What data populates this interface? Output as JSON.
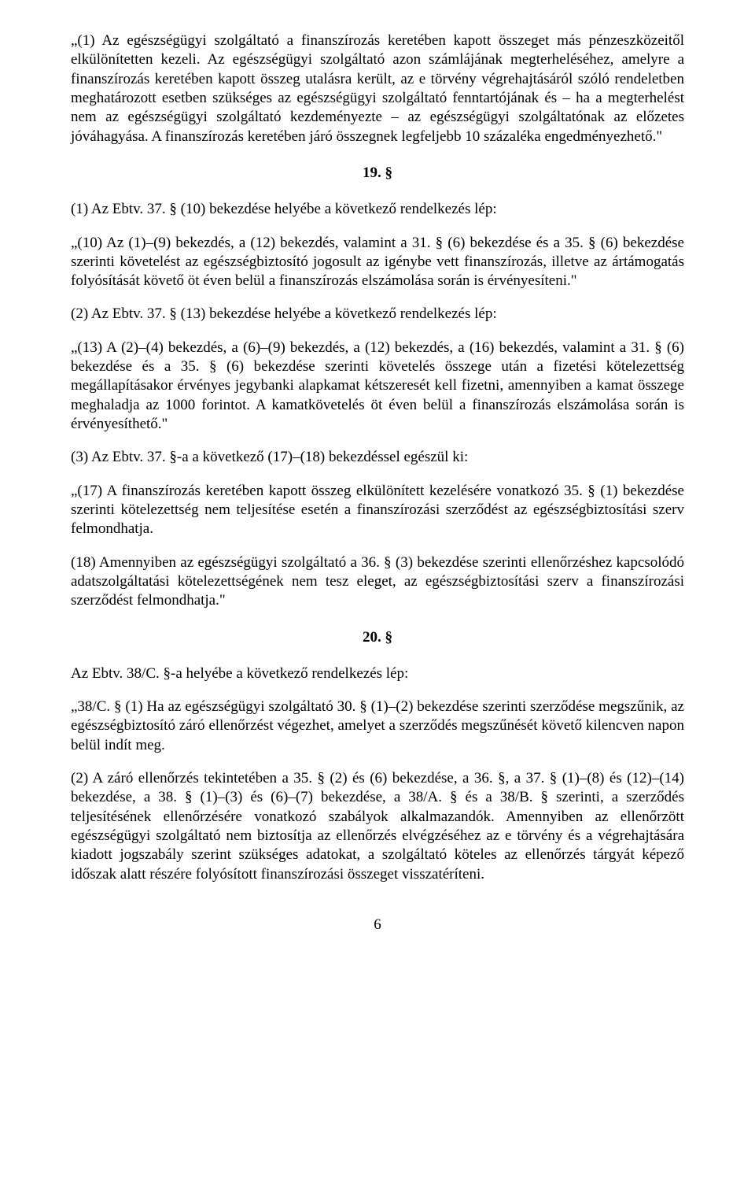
{
  "p1": "„(1) Az egészségügyi szolgáltató a finanszírozás keretében kapott összeget más pénzeszközeitől elkülönítetten kezeli. Az egészségügyi szolgáltató azon számlájának megterheléséhez, amelyre a finanszírozás keretében kapott összeg utalásra került, az e törvény végrehajtásáról szóló rendeletben meghatározott esetben szükséges az egészségügyi szolgáltató fenntartójának és – ha a megterhelést nem az egészségügyi szolgáltató kezdeményezte – az egészségügyi szolgáltatónak az előzetes jóváhagyása. A finanszírozás keretében járó összegnek legfeljebb 10 százaléka engedményezhető.\"",
  "s19": "19. §",
  "p2": "(1) Az Ebtv. 37. § (10) bekezdése helyébe a következő rendelkezés lép:",
  "p3": "„(10) Az (1)–(9) bekezdés, a (12) bekezdés, valamint a 31. § (6) bekezdése és a 35. § (6) bekezdése szerinti követelést az egészségbiztosító jogosult az igénybe vett finanszírozás, illetve az ártámogatás folyósítását követő öt éven belül a finanszírozás elszámolása során is érvényesíteni.\"",
  "p4": "(2) Az Ebtv. 37. § (13) bekezdése helyébe a következő rendelkezés lép:",
  "p5": "„(13) A (2)–(4) bekezdés, a (6)–(9) bekezdés, a (12) bekezdés, a (16) bekezdés, valamint a 31. § (6) bekezdése és a 35. § (6) bekezdése szerinti követelés összege után a fizetési kötelezettség megállapításakor érvényes jegybanki alapkamat kétszeresét kell fizetni, amennyiben a kamat összege meghaladja az 1000 forintot. A kamatkövetelés öt éven belül a finanszírozás elszámolása során is érvényesíthető.\"",
  "p6": "(3) Az Ebtv. 37. §-a a következő (17)–(18) bekezdéssel egészül ki:",
  "p7": "„(17) A finanszírozás keretében kapott összeg elkülönített kezelésére vonatkozó 35. § (1) bekezdése szerinti kötelezettség nem teljesítése esetén a finanszírozási szerződést az egészségbiztosítási szerv felmondhatja.",
  "p8": "(18) Amennyiben az egészségügyi szolgáltató a 36. § (3) bekezdése szerinti ellenőrzéshez kapcsolódó adatszolgáltatási kötelezettségének nem tesz eleget, az egészségbiztosítási szerv a finanszírozási szerződést felmondhatja.\"",
  "s20": "20. §",
  "p9": "Az Ebtv. 38/C. §-a helyébe a következő rendelkezés lép:",
  "p10": "„38/C. § (1) Ha az egészségügyi szolgáltató 30. § (1)–(2) bekezdése szerinti szerződése megszűnik, az egészségbiztosító záró ellenőrzést végezhet, amelyet a szerződés megszűnését követő kilencven napon belül indít meg.",
  "p11": "(2) A záró ellenőrzés tekintetében a 35. § (2) és (6) bekezdése, a 36. §, a 37. § (1)–(8) és (12)–(14) bekezdése, a 38. § (1)–(3) és (6)–(7) bekezdése, a 38/A. § és a 38/B. § szerinti, a szerződés teljesítésének ellenőrzésére vonatkozó szabályok alkalmazandók. Amennyiben az ellenőrzött egészségügyi szolgáltató nem biztosítja az ellenőrzés elvégzéséhez az e törvény és a végrehajtására kiadott jogszabály szerint szükséges adatokat, a szolgáltató köteles az ellenőrzés tárgyát képező időszak alatt részére folyósított finanszírozási összeget visszatéríteni.",
  "pageNumber": "6"
}
